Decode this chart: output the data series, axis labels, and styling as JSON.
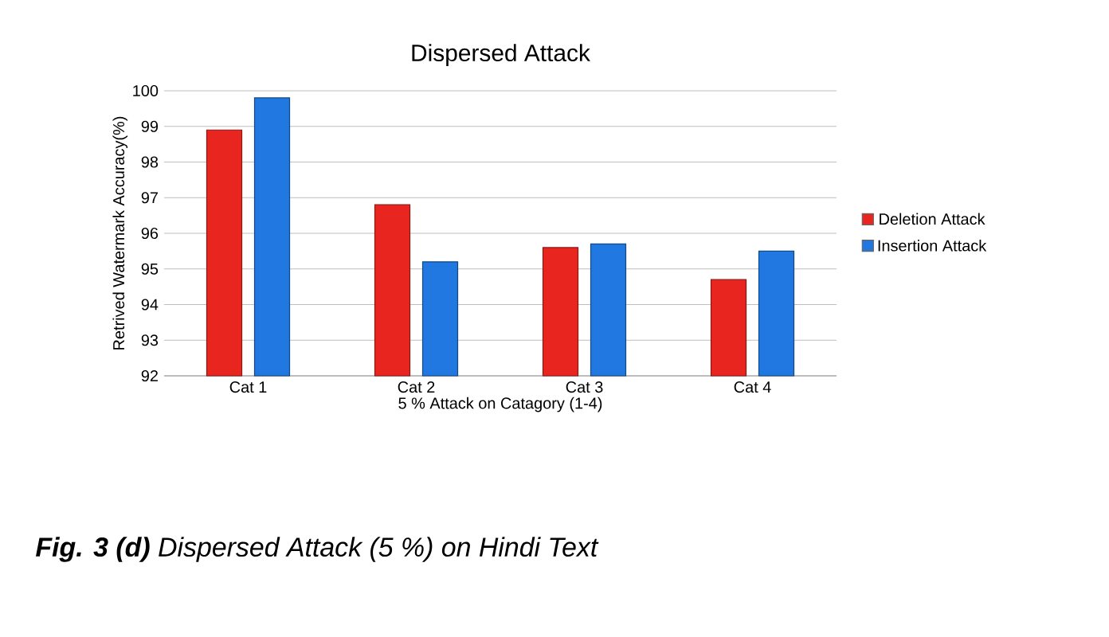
{
  "chart_data": {
    "type": "bar",
    "title": "Dispersed Attack",
    "xlabel": "5 % Attack on Catagory (1-4)",
    "ylabel": "Retrived  Watermark  Accuracy(%)",
    "categories": [
      "Cat 1",
      "Cat 2",
      "Cat 3",
      "Cat 4"
    ],
    "series": [
      {
        "name": "Deletion Attack",
        "color": "#e8261f",
        "values": [
          98.9,
          96.8,
          95.6,
          94.7
        ]
      },
      {
        "name": "Insertion Attack",
        "color": "#2078e0",
        "values": [
          99.8,
          95.2,
          95.7,
          95.5
        ]
      }
    ],
    "ylim": [
      92,
      100
    ],
    "yticks": [
      92,
      93,
      94,
      95,
      96,
      97,
      98,
      99,
      100
    ],
    "grid": "y",
    "legend": "right",
    "annotations": [
      "**Fig. 3 (d)** Dispersed Attack (5 %) on Hindi Text"
    ]
  }
}
